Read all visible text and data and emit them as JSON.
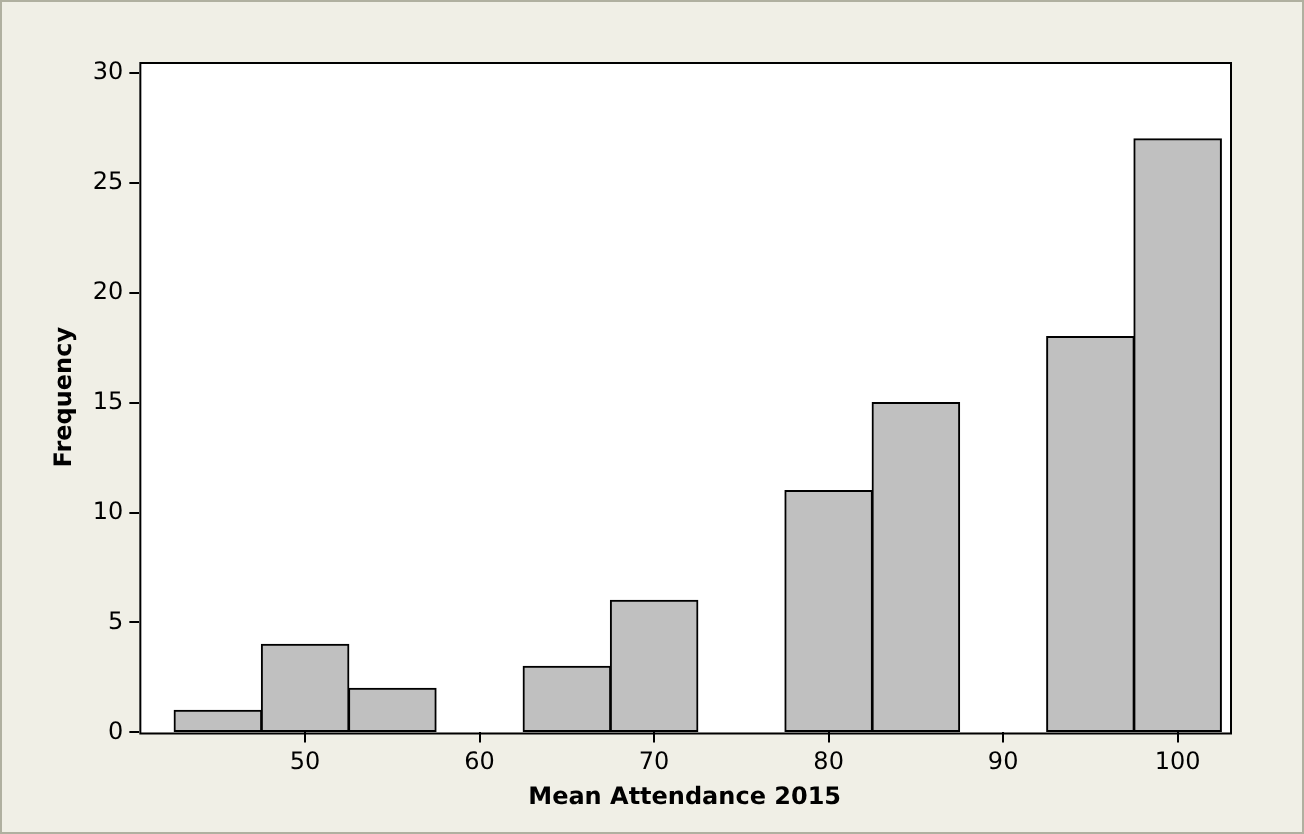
{
  "chart_data": {
    "type": "histogram",
    "xlabel": "Mean Attendance 2015",
    "ylabel": "Frequency",
    "bins": [
      42.5,
      47.5,
      52.5,
      57.5,
      62.5,
      67.5,
      72.5,
      77.5,
      82.5,
      87.5,
      92.5,
      97.5,
      102.5
    ],
    "values": [
      1,
      4,
      2,
      0,
      3,
      6,
      0,
      11,
      15,
      0,
      18,
      27
    ],
    "color": "#c0c0c0",
    "xlim": [
      40.5,
      103
    ],
    "xticks": [
      50,
      60,
      70,
      80,
      90,
      100
    ],
    "ylim": [
      0,
      30.5
    ],
    "yticks": [
      0,
      5,
      10,
      15,
      20,
      25,
      30
    ],
    "grid": false,
    "legend": false
  }
}
